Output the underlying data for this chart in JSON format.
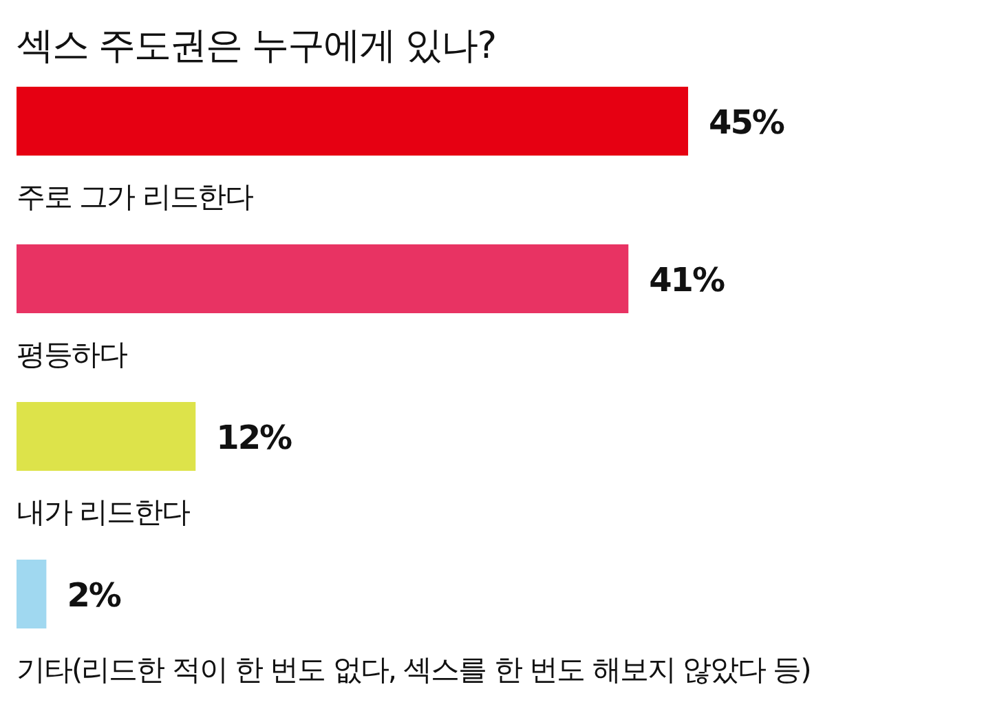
{
  "chart_data": {
    "type": "bar",
    "orientation": "horizontal",
    "title": "섹스 주도권은 누구에게 있나?",
    "categories": [
      "주로 그가 리드한다",
      "평등하다",
      "내가 리드한다",
      "기타(리드한 적이 한 번도 없다, 섹스를 한 번도 해보지 않았다 등)"
    ],
    "values": [
      45,
      41,
      12,
      2
    ],
    "colors": [
      "#e60012",
      "#e83363",
      "#dde34a",
      "#a0d8f0"
    ],
    "value_labels": [
      "45%",
      "41%",
      "12%",
      "2%"
    ]
  }
}
